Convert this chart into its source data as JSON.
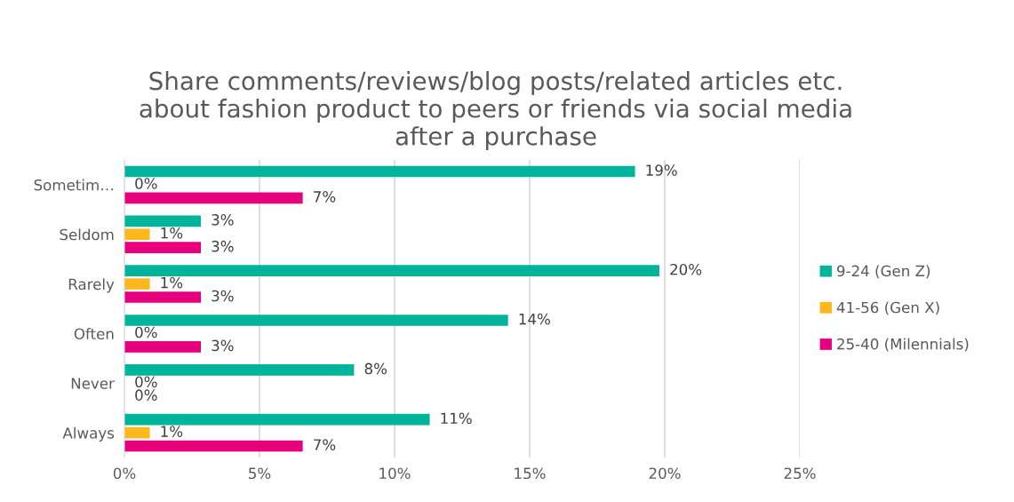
{
  "chart_data": {
    "type": "bar",
    "orientation": "horizontal",
    "title": "Share comments/reviews/blog posts/related articles etc.\nabout fashion product to peers or friends via social media\nafter a purchase",
    "categories": [
      "Sometim…",
      "Seldom",
      "Rarely",
      "Often",
      "Never",
      "Always"
    ],
    "series": [
      {
        "name": "9-24 (Gen Z)",
        "color": "#00b39b",
        "values": [
          18.9,
          2.83,
          19.8,
          14.2,
          8.5,
          11.3
        ],
        "value_labels": [
          "19%",
          "3%",
          "20%",
          "14%",
          "8%",
          "11%"
        ]
      },
      {
        "name": "41-56 (Gen X)",
        "color": "#ffb81c",
        "values": [
          0,
          0.94,
          0.94,
          0,
          0,
          0.94
        ],
        "value_labels": [
          "0%",
          "1%",
          "1%",
          "0%",
          "0%",
          "1%"
        ]
      },
      {
        "name": "25-40 (Milennials)",
        "color": "#e6007e",
        "values": [
          6.6,
          2.83,
          2.83,
          2.83,
          0,
          6.6
        ],
        "value_labels": [
          "7%",
          "3%",
          "3%",
          "3%",
          "0%",
          "7%"
        ]
      }
    ],
    "xlim": [
      0,
      25
    ],
    "xticks": [
      {
        "value": 0,
        "label": "0%"
      },
      {
        "value": 5,
        "label": "5%"
      },
      {
        "value": 10,
        "label": "10%"
      },
      {
        "value": 15,
        "label": "15%"
      },
      {
        "value": 20,
        "label": "20%"
      },
      {
        "value": 25,
        "label": "25%"
      }
    ],
    "grid": "x",
    "legend": "right"
  }
}
